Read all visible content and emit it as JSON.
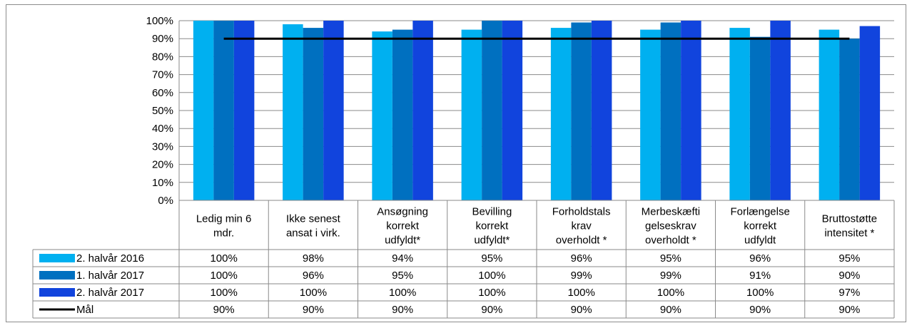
{
  "chart_data": {
    "type": "bar",
    "categories": [
      [
        "Ledig min 6",
        "mdr."
      ],
      [
        "Ikke senest",
        "ansat i virk."
      ],
      [
        "Ansøgning",
        "korrekt",
        "udfyldt*"
      ],
      [
        "Bevilling",
        "korrekt",
        "udfyldt*"
      ],
      [
        "Forholdstals",
        "krav",
        "overholdt *"
      ],
      [
        "Merbeskæfti",
        "gelseskrav",
        "overholdt *"
      ],
      [
        "Forlængelse",
        "korrekt",
        "udfyldt"
      ],
      [
        "Bruttostøtte",
        "intensitet *"
      ]
    ],
    "series": [
      {
        "name": "2. halvår 2016",
        "color": "#00b0f0",
        "values": [
          100,
          98,
          94,
          95,
          96,
          95,
          96,
          95
        ]
      },
      {
        "name": "1. halvår 2017",
        "color": "#0070c0",
        "values": [
          100,
          96,
          95,
          100,
          99,
          99,
          91,
          90
        ]
      },
      {
        "name": "2. halvår 2017",
        "color": "#1144dd",
        "values": [
          100,
          100,
          100,
          100,
          100,
          100,
          100,
          97
        ]
      }
    ],
    "line_series": {
      "name": "Mål",
      "color": "#000000",
      "values": [
        90,
        90,
        90,
        90,
        90,
        90,
        90,
        90
      ]
    },
    "ylim": [
      0,
      100
    ],
    "y_ticks": [
      "0%",
      "10%",
      "20%",
      "30%",
      "40%",
      "50%",
      "60%",
      "70%",
      "80%",
      "90%",
      "100%"
    ],
    "value_suffix": "%",
    "grid": true,
    "legend_placement": "data-table"
  }
}
